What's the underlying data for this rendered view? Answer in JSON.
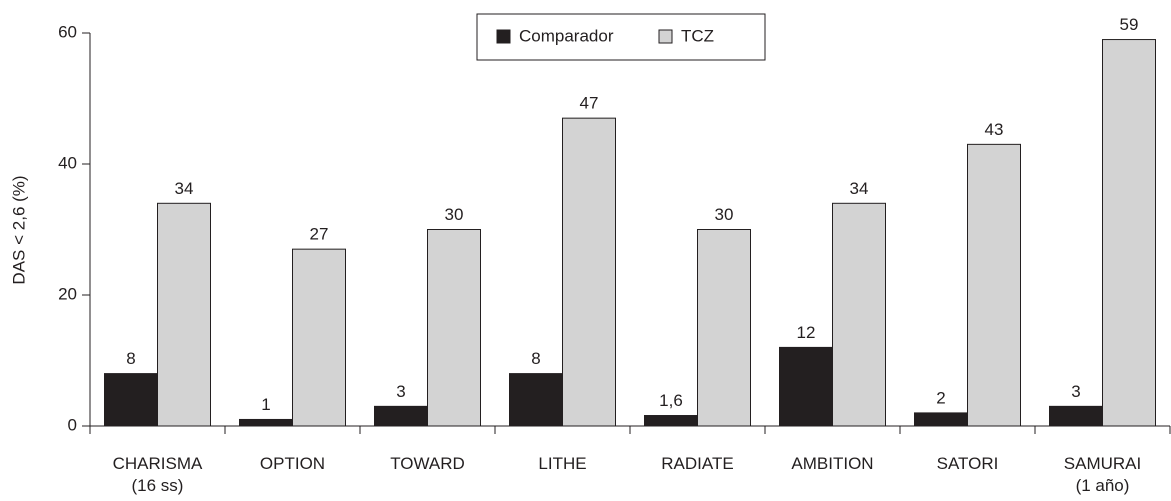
{
  "chart_data": {
    "type": "bar",
    "y_label": "DAS < 2,6 (%)",
    "categories": [
      "CHARISMA\n(16 ss)",
      "OPTION",
      "TOWARD",
      "LITHE",
      "RADIATE",
      "AMBITION",
      "SATORI",
      "SAMURAI\n(1 año)"
    ],
    "series": [
      {
        "name": "Comparador",
        "color": "#231f20",
        "values": [
          8,
          1,
          3,
          8,
          1.6,
          12,
          2,
          3
        ],
        "value_labels": [
          "8",
          "1",
          "3",
          "8",
          "1,6",
          "12",
          "2",
          "3"
        ]
      },
      {
        "name": "TCZ",
        "color": "#d3d3d3",
        "values": [
          34,
          27,
          30,
          47,
          30,
          34,
          43,
          59
        ]
      }
    ],
    "ylim": [
      0,
      60
    ],
    "yticks": [
      0,
      20,
      40,
      60
    ],
    "legend": "top"
  }
}
